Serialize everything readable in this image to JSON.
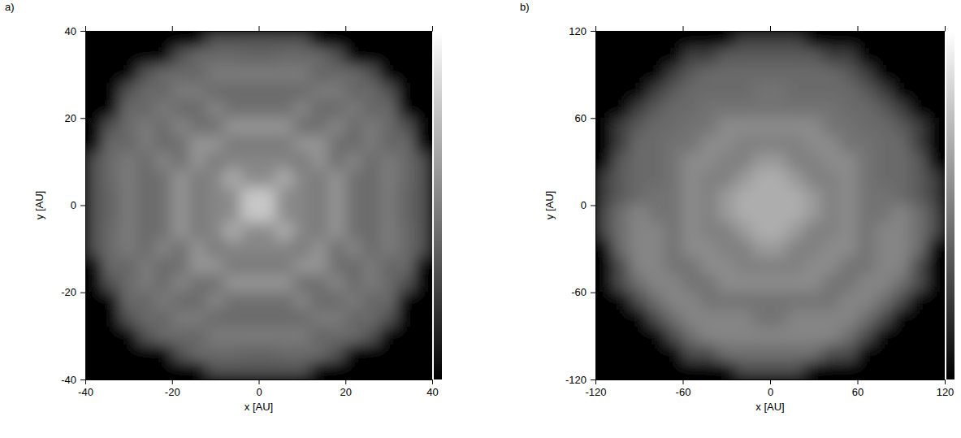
{
  "chart_data": [
    {
      "type": "heatmap",
      "title": "a)",
      "xlabel": "x [AU]",
      "ylabel": "y [AU]",
      "xlim": [
        -40,
        40
      ],
      "ylim": [
        -40,
        40
      ],
      "xticks": [
        -40,
        -20,
        0,
        20,
        40
      ],
      "yticks": [
        -40,
        -20,
        0,
        20,
        40
      ],
      "color_range": [
        0,
        1
      ],
      "x": [
        -38,
        -34,
        -30,
        -26,
        -22,
        -18,
        -14,
        -10,
        -6,
        -2,
        2,
        6,
        10,
        14,
        18,
        22,
        26,
        30,
        34,
        38
      ],
      "y": [
        38,
        34,
        30,
        26,
        22,
        18,
        14,
        10,
        6,
        2,
        -2,
        -6,
        -10,
        -14,
        -18,
        -22,
        -26,
        -30,
        -34,
        -38
      ],
      "cells": [
        [
          0,
          0,
          0,
          0,
          0,
          0,
          0,
          0.32,
          0.32,
          0.32,
          0.32,
          0.32,
          0.32,
          0,
          0,
          0,
          0,
          0,
          0,
          0
        ],
        [
          0,
          0,
          0,
          0,
          0,
          0.32,
          0.42,
          0.42,
          0.42,
          0.4,
          0.4,
          0.42,
          0.42,
          0.42,
          0.32,
          0,
          0,
          0,
          0,
          0
        ],
        [
          0,
          0,
          0,
          0.32,
          0.42,
          0.42,
          0.4,
          0.48,
          0.48,
          0.48,
          0.48,
          0.48,
          0.48,
          0.4,
          0.42,
          0.42,
          0.32,
          0,
          0,
          0
        ],
        [
          0,
          0,
          0.32,
          0.42,
          0.4,
          0.48,
          0.48,
          0.42,
          0.42,
          0.42,
          0.42,
          0.42,
          0.42,
          0.48,
          0.48,
          0.4,
          0.42,
          0.32,
          0,
          0
        ],
        [
          0,
          0,
          0.42,
          0.4,
          0.48,
          0.42,
          0.42,
          0.52,
          0.44,
          0.44,
          0.44,
          0.44,
          0.52,
          0.42,
          0.42,
          0.48,
          0.4,
          0.42,
          0,
          0
        ],
        [
          0,
          0.32,
          0.42,
          0.48,
          0.42,
          0.52,
          0.44,
          0.44,
          0.58,
          0.58,
          0.58,
          0.58,
          0.44,
          0.44,
          0.52,
          0.42,
          0.48,
          0.42,
          0.32,
          0
        ],
        [
          0,
          0.42,
          0.4,
          0.48,
          0.42,
          0.44,
          0.58,
          0.58,
          0.48,
          0.48,
          0.48,
          0.48,
          0.58,
          0.58,
          0.44,
          0.42,
          0.48,
          0.4,
          0.42,
          0
        ],
        [
          0.32,
          0.42,
          0.48,
          0.42,
          0.52,
          0.44,
          0.58,
          0.48,
          0.52,
          0.52,
          0.52,
          0.52,
          0.48,
          0.58,
          0.44,
          0.52,
          0.42,
          0.48,
          0.42,
          0.32
        ],
        [
          0.32,
          0.42,
          0.48,
          0.42,
          0.44,
          0.58,
          0.48,
          0.52,
          0.68,
          0.55,
          0.55,
          0.68,
          0.52,
          0.48,
          0.58,
          0.44,
          0.42,
          0.48,
          0.42,
          0.32
        ],
        [
          0.32,
          0.4,
          0.48,
          0.42,
          0.44,
          0.58,
          0.48,
          0.52,
          0.55,
          0.78,
          0.78,
          0.55,
          0.52,
          0.48,
          0.58,
          0.44,
          0.42,
          0.48,
          0.4,
          0.32
        ],
        [
          0.32,
          0.4,
          0.48,
          0.42,
          0.44,
          0.58,
          0.48,
          0.52,
          0.55,
          0.78,
          0.78,
          0.55,
          0.52,
          0.48,
          0.58,
          0.44,
          0.42,
          0.48,
          0.4,
          0.32
        ],
        [
          0.32,
          0.42,
          0.48,
          0.42,
          0.44,
          0.58,
          0.48,
          0.52,
          0.68,
          0.55,
          0.55,
          0.68,
          0.52,
          0.48,
          0.58,
          0.44,
          0.42,
          0.48,
          0.42,
          0.32
        ],
        [
          0.32,
          0.42,
          0.48,
          0.42,
          0.52,
          0.44,
          0.58,
          0.48,
          0.52,
          0.52,
          0.52,
          0.52,
          0.48,
          0.58,
          0.44,
          0.52,
          0.42,
          0.48,
          0.42,
          0.32
        ],
        [
          0,
          0.42,
          0.4,
          0.48,
          0.42,
          0.44,
          0.58,
          0.58,
          0.48,
          0.48,
          0.48,
          0.48,
          0.58,
          0.58,
          0.44,
          0.42,
          0.48,
          0.4,
          0.42,
          0
        ],
        [
          0,
          0.32,
          0.42,
          0.48,
          0.42,
          0.52,
          0.44,
          0.44,
          0.58,
          0.58,
          0.58,
          0.58,
          0.44,
          0.44,
          0.52,
          0.42,
          0.48,
          0.42,
          0.32,
          0
        ],
        [
          0,
          0,
          0.42,
          0.4,
          0.48,
          0.42,
          0.42,
          0.52,
          0.44,
          0.44,
          0.44,
          0.44,
          0.52,
          0.42,
          0.42,
          0.48,
          0.4,
          0.42,
          0,
          0
        ],
        [
          0,
          0,
          0.32,
          0.42,
          0.4,
          0.48,
          0.48,
          0.42,
          0.42,
          0.42,
          0.42,
          0.42,
          0.42,
          0.48,
          0.48,
          0.4,
          0.42,
          0.32,
          0,
          0
        ],
        [
          0,
          0,
          0,
          0.32,
          0.42,
          0.42,
          0.4,
          0.48,
          0.48,
          0.48,
          0.48,
          0.48,
          0.48,
          0.4,
          0.42,
          0.42,
          0.32,
          0,
          0,
          0
        ],
        [
          0,
          0,
          0,
          0,
          0,
          0.32,
          0.42,
          0.42,
          0.42,
          0.4,
          0.4,
          0.42,
          0.42,
          0.42,
          0.32,
          0,
          0,
          0,
          0,
          0
        ],
        [
          0,
          0,
          0,
          0,
          0,
          0,
          0,
          0.32,
          0.32,
          0.32,
          0.32,
          0.32,
          0.32,
          0,
          0,
          0,
          0,
          0,
          0,
          0
        ]
      ]
    },
    {
      "type": "heatmap",
      "title": "b)",
      "xlabel": "x [AU]",
      "ylabel": "y [AU]",
      "xlim": [
        -120,
        120
      ],
      "ylim": [
        -120,
        120
      ],
      "xticks": [
        -120,
        -60,
        0,
        60,
        120
      ],
      "yticks": [
        -120,
        -60,
        0,
        60,
        120
      ],
      "color_range": [
        0,
        1
      ],
      "x": [
        -114,
        -102,
        -90,
        -78,
        -66,
        -54,
        -42,
        -30,
        -18,
        -6,
        6,
        18,
        30,
        42,
        54,
        66,
        78,
        90,
        102,
        114
      ],
      "y": [
        114,
        102,
        90,
        78,
        66,
        54,
        42,
        30,
        18,
        6,
        -6,
        -18,
        -30,
        -42,
        -54,
        -66,
        -78,
        -90,
        -102,
        -114
      ],
      "cells": [
        [
          0,
          0,
          0,
          0,
          0,
          0,
          0,
          0,
          0.25,
          0.25,
          0.25,
          0.25,
          0,
          0,
          0,
          0,
          0,
          0,
          0,
          0
        ],
        [
          0,
          0,
          0,
          0,
          0,
          0.25,
          0.25,
          0.36,
          0.36,
          0.36,
          0.36,
          0.36,
          0.36,
          0.25,
          0.25,
          0,
          0,
          0,
          0,
          0
        ],
        [
          0,
          0,
          0,
          0,
          0.25,
          0.36,
          0.42,
          0.42,
          0.42,
          0.42,
          0.42,
          0.42,
          0.42,
          0.42,
          0.36,
          0.25,
          0,
          0,
          0,
          0
        ],
        [
          0,
          0,
          0,
          0.25,
          0.36,
          0.42,
          0.42,
          0.42,
          0.42,
          0.45,
          0.45,
          0.42,
          0.42,
          0.42,
          0.42,
          0.36,
          0.25,
          0,
          0,
          0
        ],
        [
          0,
          0,
          0.25,
          0.36,
          0.42,
          0.42,
          0.45,
          0.45,
          0.45,
          0.45,
          0.45,
          0.45,
          0.45,
          0.45,
          0.42,
          0.42,
          0.36,
          0.25,
          0,
          0
        ],
        [
          0,
          0.25,
          0.36,
          0.42,
          0.42,
          0.45,
          0.45,
          0.55,
          0.55,
          0.55,
          0.55,
          0.55,
          0.55,
          0.45,
          0.45,
          0.42,
          0.42,
          0.36,
          0.25,
          0
        ],
        [
          0,
          0.25,
          0.42,
          0.42,
          0.45,
          0.45,
          0.55,
          0.55,
          0.5,
          0.5,
          0.5,
          0.5,
          0.55,
          0.55,
          0.45,
          0.45,
          0.42,
          0.42,
          0.25,
          0
        ],
        [
          0,
          0.36,
          0.42,
          0.42,
          0.45,
          0.55,
          0.55,
          0.5,
          0.5,
          0.6,
          0.6,
          0.5,
          0.5,
          0.55,
          0.55,
          0.45,
          0.42,
          0.42,
          0.36,
          0
        ],
        [
          0.25,
          0.36,
          0.42,
          0.42,
          0.45,
          0.55,
          0.5,
          0.5,
          0.6,
          0.68,
          0.68,
          0.6,
          0.5,
          0.5,
          0.55,
          0.45,
          0.42,
          0.42,
          0.36,
          0.25
        ],
        [
          0.25,
          0.36,
          0.42,
          0.45,
          0.45,
          0.55,
          0.5,
          0.6,
          0.68,
          0.68,
          0.68,
          0.68,
          0.6,
          0.5,
          0.55,
          0.45,
          0.45,
          0.42,
          0.36,
          0.25
        ],
        [
          0.3,
          0.44,
          0.52,
          0.45,
          0.45,
          0.55,
          0.5,
          0.6,
          0.68,
          0.68,
          0.68,
          0.68,
          0.6,
          0.5,
          0.55,
          0.45,
          0.45,
          0.52,
          0.44,
          0.3
        ],
        [
          0.3,
          0.44,
          0.52,
          0.52,
          0.45,
          0.55,
          0.5,
          0.5,
          0.6,
          0.68,
          0.68,
          0.6,
          0.5,
          0.5,
          0.55,
          0.45,
          0.52,
          0.52,
          0.44,
          0.3
        ],
        [
          0,
          0.44,
          0.52,
          0.52,
          0.45,
          0.55,
          0.55,
          0.5,
          0.5,
          0.6,
          0.6,
          0.5,
          0.5,
          0.55,
          0.55,
          0.45,
          0.52,
          0.52,
          0.44,
          0
        ],
        [
          0,
          0.3,
          0.52,
          0.52,
          0.45,
          0.45,
          0.55,
          0.55,
          0.5,
          0.5,
          0.5,
          0.5,
          0.55,
          0.55,
          0.45,
          0.45,
          0.52,
          0.52,
          0.3,
          0
        ],
        [
          0,
          0.3,
          0.44,
          0.52,
          0.52,
          0.45,
          0.45,
          0.55,
          0.55,
          0.55,
          0.55,
          0.55,
          0.55,
          0.45,
          0.45,
          0.52,
          0.52,
          0.44,
          0.3,
          0
        ],
        [
          0,
          0,
          0.3,
          0.44,
          0.52,
          0.52,
          0.45,
          0.45,
          0.45,
          0.45,
          0.45,
          0.45,
          0.45,
          0.45,
          0.52,
          0.52,
          0.44,
          0.3,
          0,
          0
        ],
        [
          0,
          0,
          0,
          0.3,
          0.44,
          0.52,
          0.52,
          0.52,
          0.52,
          0.45,
          0.45,
          0.52,
          0.52,
          0.52,
          0.52,
          0.44,
          0.3,
          0,
          0,
          0
        ],
        [
          0,
          0,
          0,
          0,
          0.3,
          0.44,
          0.52,
          0.52,
          0.52,
          0.52,
          0.52,
          0.52,
          0.52,
          0.52,
          0.44,
          0.3,
          0,
          0,
          0,
          0
        ],
        [
          0,
          0,
          0,
          0,
          0,
          0.3,
          0.3,
          0.44,
          0.44,
          0.44,
          0.44,
          0.44,
          0.44,
          0.3,
          0.3,
          0,
          0,
          0,
          0,
          0
        ],
        [
          0,
          0,
          0,
          0,
          0,
          0,
          0,
          0,
          0.3,
          0.3,
          0.3,
          0.3,
          0,
          0,
          0,
          0,
          0,
          0,
          0,
          0
        ]
      ]
    }
  ]
}
